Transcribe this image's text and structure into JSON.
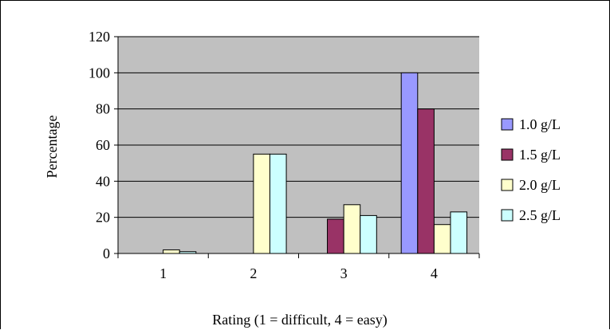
{
  "chart_data": {
    "type": "bar",
    "categories": [
      "1",
      "2",
      "3",
      "4"
    ],
    "series": [
      {
        "name": "1.0 g/L",
        "color": "#9999ff",
        "values": [
          0,
          0,
          0,
          100
        ]
      },
      {
        "name": "1.5 g/L",
        "color": "#993366",
        "values": [
          0,
          0,
          19,
          80
        ]
      },
      {
        "name": "2.0 g/L",
        "color": "#ffffcc",
        "values": [
          2,
          55,
          27,
          16
        ]
      },
      {
        "name": "2.5 g/L",
        "color": "#ccffff",
        "values": [
          1,
          55,
          21,
          23
        ]
      }
    ],
    "yticks": [
      "0",
      "20",
      "40",
      "60",
      "80",
      "100",
      "120"
    ],
    "ylim": [
      0,
      120
    ],
    "ylabel": "Percentage",
    "xlabel": "Rating (1 = difficult, 4 = easy)",
    "plot_background": "#c0c0c0",
    "grid": true,
    "legend_position": "right"
  }
}
